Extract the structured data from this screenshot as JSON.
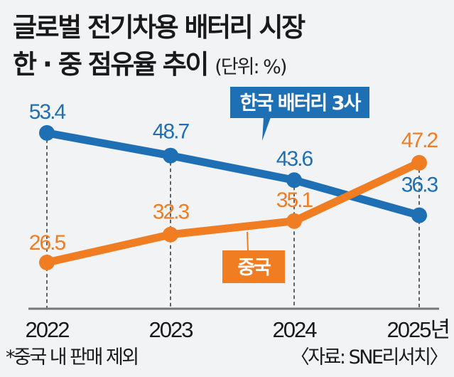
{
  "header": {
    "title_line1": "글로벌 전기차용 배터리 시장",
    "title_line2": "한 · 중 점유율 추이",
    "unit_note": "(단위: %)"
  },
  "footer": {
    "note": "*중국 내 판매 제외",
    "source": "〈자료: SNE리서치〉"
  },
  "chart_data": {
    "type": "line",
    "title": "글로벌 전기차용 배터리 시장 한 · 중 점유율 추이",
    "unit": "%",
    "categories": [
      "2022",
      "2023",
      "2024",
      "2025년"
    ],
    "series": [
      {
        "name": "한국 배터리 3사",
        "color": "#1f6fb4",
        "values": [
          53.4,
          48.7,
          43.6,
          36.3
        ],
        "labels": [
          "53.4",
          "48.7",
          "43.6",
          "36.3"
        ]
      },
      {
        "name": "중국",
        "color": "#f07d22",
        "values": [
          26.5,
          32.3,
          35.1,
          47.2
        ],
        "labels": [
          "26.5",
          "32.3",
          "35.1",
          "47.2"
        ]
      }
    ],
    "xlabel": "",
    "ylabel": "",
    "grid": "vertical dashed lines at each year",
    "legend": "inline callout labels"
  }
}
